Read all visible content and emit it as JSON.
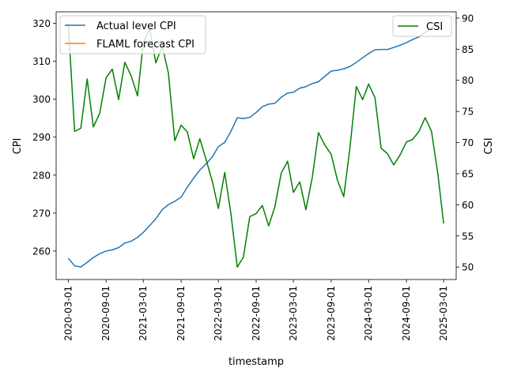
{
  "chart_data": {
    "type": "line",
    "xlabel": "timestamp",
    "ylabel_left": "CPI",
    "ylabel_right": "CSI",
    "x_ticks": [
      "2020-03-01",
      "2020-09-01",
      "2021-03-01",
      "2021-09-01",
      "2022-03-01",
      "2022-09-01",
      "2023-03-01",
      "2023-09-01",
      "2024-03-01",
      "2024-09-01",
      "2025-03-01"
    ],
    "x_range": [
      "2020-01-02",
      "2025-05-01"
    ],
    "left_axis": {
      "ylim": [
        252.5,
        323.0
      ],
      "ticks": [
        260,
        270,
        280,
        290,
        300,
        310,
        320
      ]
    },
    "right_axis": {
      "ylim": [
        48.0,
        91.0
      ],
      "ticks": [
        50,
        55,
        60,
        65,
        70,
        75,
        80,
        85,
        90
      ]
    },
    "legend_left": {
      "placement": "upper-left",
      "entries": [
        {
          "name": "Actual level CPI",
          "color": "#1f77b4"
        },
        {
          "name": "FLAML forecast CPI",
          "color": "#ff7f0e"
        }
      ]
    },
    "legend_right": {
      "placement": "upper-right",
      "entries": [
        {
          "name": "CSI",
          "color": "#008000"
        }
      ]
    },
    "series": [
      {
        "name": "Actual level CPI",
        "axis": "left",
        "color": "#1f77b4",
        "x": [
          "2020-03-01",
          "2020-04-01",
          "2020-05-01",
          "2020-06-01",
          "2020-07-01",
          "2020-08-01",
          "2020-09-01",
          "2020-10-01",
          "2020-11-01",
          "2020-12-01",
          "2021-01-01",
          "2021-02-01",
          "2021-03-01",
          "2021-04-01",
          "2021-05-01",
          "2021-06-01",
          "2021-07-01",
          "2021-08-01",
          "2021-09-01",
          "2021-10-01",
          "2021-11-01",
          "2021-12-01",
          "2022-01-01",
          "2022-02-01",
          "2022-03-01",
          "2022-04-01",
          "2022-05-01",
          "2022-06-01",
          "2022-07-01",
          "2022-08-01",
          "2022-09-01",
          "2022-10-01",
          "2022-11-01",
          "2022-12-01",
          "2023-01-01",
          "2023-02-01",
          "2023-03-01",
          "2023-04-01",
          "2023-05-01",
          "2023-06-01",
          "2023-07-01",
          "2023-08-01",
          "2023-09-01",
          "2023-10-01",
          "2023-11-01",
          "2023-12-01",
          "2024-01-01",
          "2024-02-01",
          "2024-03-01",
          "2024-04-01",
          "2024-05-01",
          "2024-06-01",
          "2024-07-01",
          "2024-08-01",
          "2024-09-01",
          "2024-10-01",
          "2024-11-01",
          "2024-12-01",
          "2025-01-01",
          "2025-02-01",
          "2025-03-01"
        ],
        "values": [
          258.1,
          256.1,
          255.8,
          257.0,
          258.3,
          259.3,
          260.0,
          260.3,
          260.9,
          262.1,
          262.6,
          263.6,
          264.9,
          266.7,
          268.5,
          270.9,
          272.2,
          273.1,
          274.2,
          276.8,
          279.2,
          281.3,
          283.0,
          284.9,
          287.5,
          288.6,
          291.5,
          295.1,
          294.9,
          295.2,
          296.5,
          298.0,
          298.7,
          298.9,
          300.5,
          301.6,
          301.8,
          302.9,
          303.3,
          304.1,
          304.6,
          306.0,
          307.4,
          307.6,
          308.0,
          308.6,
          309.7,
          310.9,
          312.0,
          313.0,
          313.1,
          313.1,
          313.6,
          314.2,
          314.9,
          315.7,
          316.4,
          317.6,
          318.7,
          320.1,
          320.5
        ]
      },
      {
        "name": "FLAML forecast CPI",
        "axis": "left",
        "color": "#ff7f0e",
        "x": [],
        "values": []
      },
      {
        "name": "CSI",
        "axis": "right",
        "color": "#008000",
        "x": [
          "2020-03-01",
          "2020-04-01",
          "2020-05-01",
          "2020-06-01",
          "2020-07-01",
          "2020-08-01",
          "2020-09-01",
          "2020-10-01",
          "2020-11-01",
          "2020-12-01",
          "2021-01-01",
          "2021-02-01",
          "2021-03-01",
          "2021-04-01",
          "2021-05-01",
          "2021-06-01",
          "2021-07-01",
          "2021-08-01",
          "2021-09-01",
          "2021-10-01",
          "2021-11-01",
          "2021-12-01",
          "2022-01-01",
          "2022-02-01",
          "2022-03-01",
          "2022-04-01",
          "2022-05-01",
          "2022-06-01",
          "2022-07-01",
          "2022-08-01",
          "2022-09-01",
          "2022-10-01",
          "2022-11-01",
          "2022-12-01",
          "2023-01-01",
          "2023-02-01",
          "2023-03-01",
          "2023-04-01",
          "2023-05-01",
          "2023-06-01",
          "2023-07-01",
          "2023-08-01",
          "2023-09-01",
          "2023-10-01",
          "2023-11-01",
          "2023-12-01",
          "2024-01-01",
          "2024-02-01",
          "2024-03-01",
          "2024-04-01",
          "2024-05-01",
          "2024-06-01",
          "2024-07-01",
          "2024-08-01",
          "2024-09-01",
          "2024-10-01",
          "2024-11-01",
          "2024-12-01",
          "2025-01-01",
          "2025-02-01",
          "2025-03-01"
        ],
        "values": [
          89.1,
          71.8,
          72.3,
          80.2,
          72.5,
          74.7,
          80.4,
          81.8,
          76.9,
          82.9,
          80.7,
          77.5,
          86.0,
          88.3,
          82.8,
          85.5,
          81.2,
          70.3,
          72.8,
          71.7,
          67.4,
          70.6,
          67.2,
          63.6,
          59.4,
          65.2,
          58.6,
          50.0,
          51.6,
          58.1,
          58.6,
          59.9,
          56.6,
          59.7,
          65.1,
          67.0,
          62.0,
          63.7,
          59.2,
          64.4,
          71.6,
          69.6,
          68.1,
          64.0,
          61.3,
          69.1,
          79.0,
          76.9,
          79.4,
          77.2,
          69.1,
          68.2,
          66.4,
          68.0,
          70.1,
          70.5,
          71.8,
          74.0,
          71.8,
          64.9,
          57.0
        ]
      }
    ]
  }
}
